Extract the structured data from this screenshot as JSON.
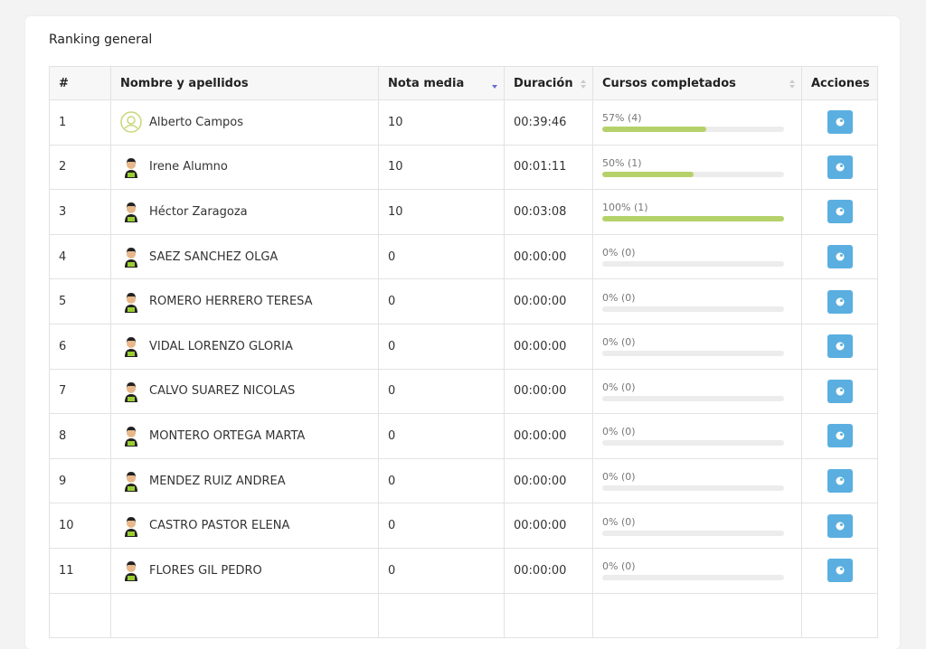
{
  "header": {
    "title": "Ranking general"
  },
  "table": {
    "columns": [
      "#",
      "Nombre y apellidos",
      "Nota media",
      "Duración",
      "Cursos completados",
      "Acciones"
    ],
    "rows": [
      {
        "rank": "1",
        "name": "Alberto Campos",
        "grade": "10",
        "duration": "00:39:46",
        "progress_label": "57% (4)",
        "progress": 57
      },
      {
        "rank": "2",
        "name": "Irene Alumno",
        "grade": "10",
        "duration": "00:01:11",
        "progress_label": "50% (1)",
        "progress": 50
      },
      {
        "rank": "3",
        "name": "Héctor Zaragoza",
        "grade": "10",
        "duration": "00:03:08",
        "progress_label": "100% (1)",
        "progress": 100
      },
      {
        "rank": "4",
        "name": "SAEZ SANCHEZ OLGA",
        "grade": "0",
        "duration": "00:00:00",
        "progress_label": "0% (0)",
        "progress": 0
      },
      {
        "rank": "5",
        "name": "ROMERO HERRERO TERESA",
        "grade": "0",
        "duration": "00:00:00",
        "progress_label": "0% (0)",
        "progress": 0
      },
      {
        "rank": "6",
        "name": "VIDAL LORENZO GLORIA",
        "grade": "0",
        "duration": "00:00:00",
        "progress_label": "0% (0)",
        "progress": 0
      },
      {
        "rank": "7",
        "name": "CALVO SUAREZ NICOLAS",
        "grade": "0",
        "duration": "00:00:00",
        "progress_label": "0% (0)",
        "progress": 0
      },
      {
        "rank": "8",
        "name": "MONTERO ORTEGA MARTA",
        "grade": "0",
        "duration": "00:00:00",
        "progress_label": "0% (0)",
        "progress": 0
      },
      {
        "rank": "9",
        "name": "MENDEZ RUIZ ANDREA",
        "grade": "0",
        "duration": "00:00:00",
        "progress_label": "0% (0)",
        "progress": 0
      },
      {
        "rank": "10",
        "name": "CASTRO PASTOR ELENA",
        "grade": "0",
        "duration": "00:00:00",
        "progress_label": "0% (0)",
        "progress": 0
      },
      {
        "rank": "11",
        "name": "FLORES GIL PEDRO",
        "grade": "0",
        "duration": "00:00:00",
        "progress_label": "0% (0)",
        "progress": 0
      }
    ]
  }
}
